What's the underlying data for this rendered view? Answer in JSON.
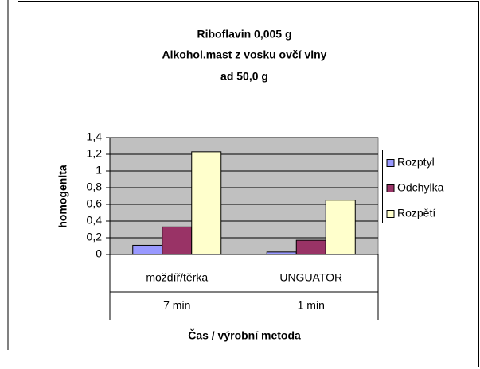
{
  "chart_data": {
    "type": "bar",
    "title": [
      "Riboflavin 0,005 g",
      "Alkohol.mast z vosku ovčí vlny",
      "ad 50,0 g"
    ],
    "y_label": "homogenita",
    "x_label": "Čas / výrobní metoda",
    "categories": [
      [
        "moždíř/těrka",
        "7 min"
      ],
      [
        "UNGUATOR",
        "1 min"
      ]
    ],
    "series": [
      {
        "name": "Rozptyl",
        "color": "#9999ff",
        "values": [
          0.11,
          0.03
        ]
      },
      {
        "name": "Odchylka",
        "color": "#993366",
        "values": [
          0.33,
          0.17
        ]
      },
      {
        "name": "Rozpětí",
        "color": "#ffffcc",
        "values": [
          1.23,
          0.65
        ]
      }
    ],
    "ylim": [
      0,
      1.4
    ],
    "yticks": [
      0,
      {
        "value": 0.2,
        "label": "0,2"
      },
      {
        "value": 0.4,
        "label": "0,4"
      },
      {
        "value": 0.6,
        "label": "0,6"
      },
      {
        "value": 0.8,
        "label": "0,8"
      },
      {
        "value": 1,
        "label": "1"
      },
      {
        "value": 1.2,
        "label": "1,2"
      },
      {
        "value": 1.4,
        "label": "1,4"
      }
    ],
    "grid": true,
    "legend": "right"
  }
}
